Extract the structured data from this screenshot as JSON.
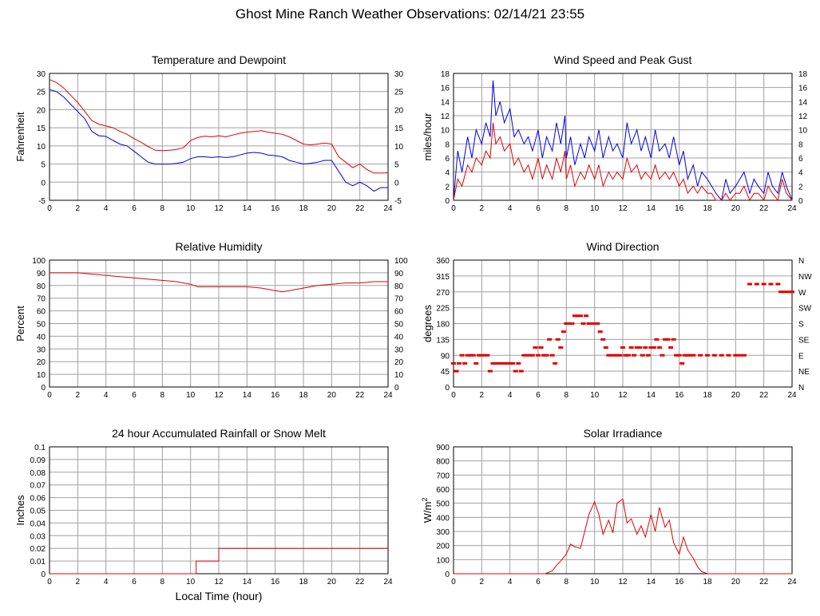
{
  "page": {
    "title": "Ghost Mine Ranch Weather Observations: 02/14/21 23:55"
  },
  "colors": {
    "red": "#e00000",
    "blue": "#0000e0",
    "grid": "#a0a0a0"
  },
  "chart_data": [
    {
      "id": "temp",
      "type": "line",
      "title": "Temperature and Dewpoint",
      "ylabel": "Fahrenheit",
      "xlabel": "",
      "xlim": [
        0,
        24
      ],
      "ylim": [
        -5,
        30
      ],
      "yticks": [
        -5,
        0,
        5,
        10,
        15,
        20,
        25,
        30
      ],
      "right_ticks": [
        "-5",
        "0",
        "5",
        "10",
        "15",
        "20",
        "25",
        "30"
      ],
      "grid": true,
      "series": [
        {
          "color": "#e00000",
          "x": [
            0,
            0.5,
            1,
            1.5,
            2,
            2.5,
            3,
            3.5,
            4,
            4.5,
            5,
            5.5,
            6,
            6.5,
            7,
            7.5,
            8,
            8.5,
            9,
            9.5,
            10,
            10.5,
            11,
            11.5,
            12,
            12.5,
            13,
            13.5,
            14,
            14.5,
            15,
            15.5,
            16,
            16.5,
            17,
            17.5,
            18,
            18.5,
            19,
            19.5,
            20,
            20.5,
            21,
            21.5,
            22,
            22.5,
            23,
            23.5,
            24
          ],
          "values": [
            28.3,
            27.5,
            26,
            24,
            22,
            19.5,
            17,
            16,
            15.5,
            15,
            14,
            13.2,
            12,
            11,
            9.8,
            8.8,
            8.7,
            8.8,
            9,
            9.5,
            11.5,
            12.3,
            12.7,
            12.5,
            12.8,
            12.5,
            13,
            13.5,
            13.8,
            14,
            14.2,
            13.8,
            13.5,
            13.2,
            12.5,
            11.5,
            10.5,
            10.3,
            10.5,
            10.8,
            10.5,
            7,
            5.5,
            4,
            5,
            3.5,
            2.5,
            2.5,
            2.6
          ]
        },
        {
          "color": "#0000e0",
          "x": [
            0,
            0.5,
            1,
            1.5,
            2,
            2.5,
            3,
            3.5,
            4,
            4.5,
            5,
            5.5,
            6,
            6.5,
            7,
            7.5,
            8,
            8.5,
            9,
            9.5,
            10,
            10.5,
            11,
            11.5,
            12,
            12.5,
            13,
            13.5,
            14,
            14.5,
            15,
            15.5,
            16,
            16.5,
            17,
            17.5,
            18,
            18.5,
            19,
            19.5,
            20,
            20.5,
            21,
            21.5,
            22,
            22.5,
            23,
            23.5,
            24
          ],
          "values": [
            25.5,
            25,
            23.5,
            21.5,
            19.5,
            17.5,
            14,
            12.8,
            12.6,
            11.5,
            10.5,
            10,
            8.5,
            7,
            5.5,
            5,
            5,
            5,
            5.2,
            5.5,
            6.5,
            7,
            7,
            6.8,
            7,
            6.8,
            7,
            7.5,
            8,
            8.2,
            8,
            7.5,
            7.3,
            7,
            6,
            5.5,
            5,
            5.2,
            5.5,
            6,
            6,
            3,
            0,
            -1,
            0,
            -1,
            -2.5,
            -1.5,
            -1.5
          ]
        }
      ]
    },
    {
      "id": "wind",
      "type": "line",
      "title": "Wind Speed and Peak Gust",
      "ylabel": "miles/hour",
      "xlabel": "",
      "xlim": [
        0,
        24
      ],
      "ylim": [
        0,
        18
      ],
      "yticks": [
        0,
        2,
        4,
        6,
        8,
        10,
        12,
        14,
        16,
        18
      ],
      "right_ticks": [
        "0",
        "2",
        "4",
        "6",
        "8",
        "10",
        "12",
        "14",
        "16",
        "18"
      ],
      "grid": true,
      "series": [
        {
          "color": "#0000e0",
          "x": [
            0,
            0.3,
            0.6,
            1,
            1.3,
            1.6,
            2,
            2.3,
            2.6,
            2.8,
            3,
            3.3,
            3.6,
            4,
            4.3,
            4.6,
            5,
            5.3,
            5.6,
            6,
            6.3,
            6.6,
            7,
            7.3,
            7.6,
            7.9,
            8,
            8.3,
            8.6,
            9,
            9.3,
            9.6,
            10,
            10.3,
            10.6,
            11,
            11.3,
            11.6,
            12,
            12.3,
            12.6,
            13,
            13.3,
            13.6,
            14,
            14.3,
            14.6,
            15,
            15.3,
            15.6,
            16,
            16.3,
            16.6,
            17,
            17.3,
            17.6,
            18,
            18.3,
            18.6,
            19,
            19.3,
            19.6,
            20,
            20.3,
            20.6,
            21,
            21.3,
            21.6,
            22,
            22.3,
            22.6,
            23,
            23.3,
            23.6,
            24
          ],
          "values": [
            0,
            7,
            4,
            9,
            6,
            10,
            8,
            11,
            9,
            17,
            12,
            14,
            11,
            13,
            9,
            10,
            8,
            9,
            7,
            10,
            6,
            9,
            7,
            11,
            8,
            12,
            6,
            9,
            5,
            8,
            6,
            9,
            7,
            10,
            6,
            9,
            7,
            8,
            6,
            11,
            8,
            10,
            7,
            9,
            6,
            10,
            7,
            8,
            6,
            9,
            5,
            7,
            3,
            5,
            2,
            4,
            3,
            2,
            1,
            0,
            3,
            1,
            2,
            3,
            4,
            1,
            3,
            2,
            1,
            4,
            2,
            1,
            4,
            2,
            0
          ]
        },
        {
          "color": "#e00000",
          "x": [
            0,
            0.3,
            0.6,
            1,
            1.3,
            1.6,
            2,
            2.3,
            2.6,
            2.8,
            3,
            3.3,
            3.6,
            4,
            4.3,
            4.6,
            5,
            5.3,
            5.6,
            6,
            6.3,
            6.6,
            7,
            7.3,
            7.6,
            7.9,
            8,
            8.3,
            8.6,
            9,
            9.3,
            9.6,
            10,
            10.3,
            10.6,
            11,
            11.3,
            11.6,
            12,
            12.3,
            12.6,
            13,
            13.3,
            13.6,
            14,
            14.3,
            14.6,
            15,
            15.3,
            15.6,
            16,
            16.3,
            16.6,
            17,
            17.3,
            17.6,
            18,
            18.3,
            18.6,
            19,
            19.3,
            19.6,
            20,
            20.3,
            20.6,
            21,
            21.3,
            21.6,
            22,
            22.3,
            22.6,
            23,
            23.3,
            23.6,
            24
          ],
          "values": [
            0,
            3,
            2,
            5,
            4,
            6,
            5,
            7,
            6,
            11,
            8,
            9,
            7,
            8,
            5,
            6,
            4,
            5,
            3,
            6,
            3,
            5,
            3,
            6,
            4,
            7,
            3,
            5,
            2,
            4,
            3,
            5,
            3,
            5,
            2,
            4,
            3,
            4,
            3,
            6,
            4,
            5,
            3,
            4,
            3,
            5,
            3,
            4,
            3,
            4,
            2,
            3,
            1,
            2,
            1,
            2,
            1,
            1,
            0,
            0,
            1,
            0,
            1,
            1,
            2,
            0,
            1,
            1,
            0,
            2,
            1,
            0,
            3,
            1,
            0
          ]
        }
      ]
    },
    {
      "id": "rh",
      "type": "line",
      "title": "Relative Humidity",
      "ylabel": "Percent",
      "xlabel": "",
      "xlim": [
        0,
        24
      ],
      "ylim": [
        0,
        100
      ],
      "yticks": [
        0,
        10,
        20,
        30,
        40,
        50,
        60,
        70,
        80,
        90,
        100
      ],
      "right_ticks": [
        "0",
        "10",
        "20",
        "30",
        "40",
        "50",
        "60",
        "70",
        "80",
        "90",
        "100"
      ],
      "grid": true,
      "series": [
        {
          "color": "#e00000",
          "x": [
            0,
            1,
            2,
            3,
            4,
            5,
            6,
            7,
            8,
            9,
            10,
            10.5,
            11,
            12,
            13,
            14,
            15,
            16,
            16.5,
            17,
            18,
            19,
            20,
            21,
            22,
            23,
            24
          ],
          "values": [
            90,
            90,
            90,
            89,
            88,
            87,
            86,
            85,
            84,
            83,
            81,
            79,
            79,
            79,
            79,
            79,
            78,
            76,
            75,
            76,
            78,
            80,
            81,
            82,
            82,
            83,
            83
          ]
        }
      ]
    },
    {
      "id": "wdir",
      "type": "scatter",
      "title": "Wind Direction",
      "ylabel": "degrees",
      "xlabel": "",
      "xlim": [
        0,
        24
      ],
      "ylim": [
        0,
        360
      ],
      "yticks": [
        0,
        45,
        90,
        135,
        180,
        225,
        270,
        315,
        360
      ],
      "right_ticks": [
        "N",
        "NE",
        "E",
        "SE",
        "S",
        "SW",
        "W",
        "NW",
        "N"
      ],
      "grid": true,
      "series": [
        {
          "color": "#e00000",
          "x": [
            0,
            0.2,
            0.4,
            0.6,
            0.8,
            1,
            1.2,
            1.4,
            1.6,
            1.8,
            2,
            2.2,
            2.4,
            2.6,
            2.8,
            3,
            3.2,
            3.4,
            3.6,
            3.8,
            4,
            4.2,
            4.4,
            4.6,
            4.8,
            5,
            5.2,
            5.4,
            5.6,
            5.8,
            6,
            6.2,
            6.4,
            6.6,
            6.8,
            7,
            7.2,
            7.4,
            7.6,
            7.8,
            8,
            8.2,
            8.4,
            8.6,
            8.8,
            9,
            9.2,
            9.4,
            9.6,
            9.8,
            10,
            10.2,
            10.4,
            10.6,
            10.8,
            11,
            11.2,
            11.4,
            11.6,
            11.8,
            12,
            12.2,
            12.4,
            12.6,
            12.8,
            13,
            13.2,
            13.4,
            13.6,
            13.8,
            14,
            14.2,
            14.4,
            14.6,
            14.8,
            15,
            15.2,
            15.4,
            15.6,
            15.8,
            16,
            16.2,
            16.4,
            16.6,
            16.8,
            17,
            17.5,
            18,
            18.5,
            19,
            19.5,
            20,
            20.3,
            20.6,
            21,
            21.5,
            22,
            22.5,
            23,
            23.2,
            23.5,
            23.8,
            24
          ],
          "values": [
            67,
            45,
            67,
            90,
            67,
            90,
            90,
            90,
            67,
            90,
            90,
            90,
            90,
            45,
            67,
            67,
            67,
            67,
            67,
            67,
            67,
            67,
            45,
            67,
            45,
            90,
            90,
            90,
            90,
            112,
            90,
            112,
            90,
            90,
            135,
            90,
            67,
            135,
            112,
            157,
            180,
            180,
            180,
            202,
            202,
            202,
            180,
            202,
            180,
            180,
            180,
            180,
            157,
            135,
            112,
            90,
            90,
            90,
            90,
            90,
            112,
            90,
            90,
            112,
            90,
            112,
            112,
            90,
            112,
            90,
            112,
            112,
            135,
            112,
            90,
            135,
            135,
            112,
            135,
            90,
            90,
            67,
            90,
            90,
            90,
            90,
            90,
            90,
            90,
            90,
            90,
            90,
            90,
            90,
            292,
            292,
            292,
            292,
            292,
            270,
            270,
            270,
            270
          ]
        }
      ]
    },
    {
      "id": "rain",
      "type": "line",
      "title": "24 hour Accumulated Rainfall or Snow Melt",
      "ylabel": "Inches",
      "xlabel": "Local Time (hour)",
      "xlim": [
        0,
        24
      ],
      "ylim": [
        0,
        0.1
      ],
      "yticks": [
        0,
        0.01,
        0.02,
        0.03,
        0.04,
        0.05,
        0.06,
        0.07,
        0.08,
        0.09,
        0.1
      ],
      "right_ticks": [],
      "grid": true,
      "series": [
        {
          "color": "#e00000",
          "x": [
            0,
            10.4,
            10.4,
            12,
            12,
            24
          ],
          "values": [
            0,
            0,
            0.01,
            0.01,
            0.02,
            0.02
          ]
        }
      ]
    },
    {
      "id": "solar",
      "type": "line",
      "title": "Solar Irradiance",
      "ylabel": "W/m",
      "ylabel_sup": "2",
      "xlabel": "",
      "xlim": [
        0,
        24
      ],
      "ylim": [
        0,
        900
      ],
      "yticks": [
        0,
        100,
        200,
        300,
        400,
        500,
        600,
        700,
        800,
        900
      ],
      "right_ticks": [],
      "grid": true,
      "series": [
        {
          "color": "#e00000",
          "x": [
            0,
            6.5,
            7,
            7.3,
            7.6,
            8,
            8.3,
            8.6,
            9,
            9.3,
            9.6,
            10,
            10.3,
            10.6,
            11,
            11.3,
            11.6,
            12,
            12.3,
            12.6,
            13,
            13.3,
            13.6,
            14,
            14.3,
            14.6,
            15,
            15.3,
            15.6,
            16,
            16.3,
            16.6,
            17,
            17.3,
            17.6,
            18,
            24
          ],
          "values": [
            0,
            0,
            20,
            60,
            90,
            140,
            210,
            190,
            180,
            300,
            420,
            510,
            420,
            280,
            380,
            290,
            500,
            530,
            360,
            390,
            280,
            340,
            260,
            420,
            300,
            470,
            330,
            380,
            220,
            140,
            260,
            170,
            110,
            50,
            15,
            0,
            0
          ]
        }
      ]
    }
  ],
  "x_ticks": [
    "0",
    "2",
    "4",
    "6",
    "8",
    "10",
    "12",
    "14",
    "16",
    "18",
    "20",
    "22",
    "24"
  ]
}
